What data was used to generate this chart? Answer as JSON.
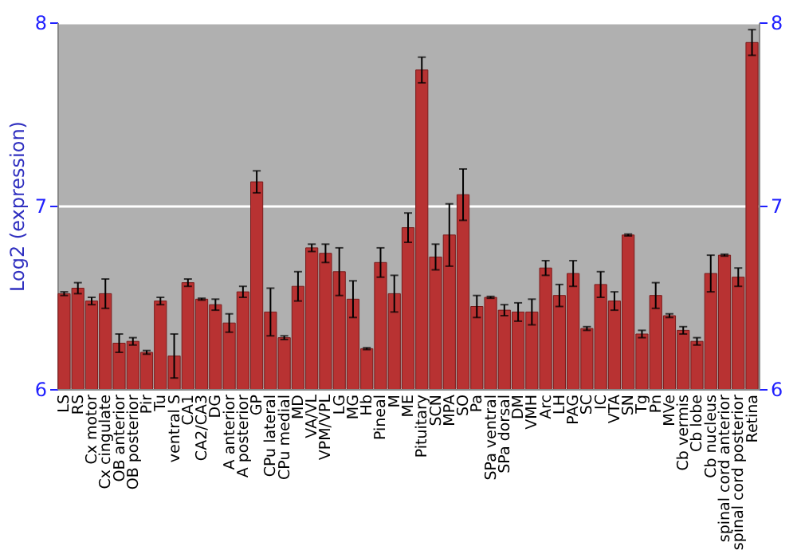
{
  "chart_data": {
    "type": "bar",
    "ylabel": "Log2 (expression)",
    "categories": [
      "LS",
      "RS",
      "Cx motor",
      "Cx cingulate",
      "OB anterior",
      "OB posterior",
      "Pir",
      "Tu",
      "ventral S",
      "CA1",
      "CA2/CA3",
      "DG",
      "A anterior",
      "A posterior",
      "GP",
      "CPu lateral",
      "CPu medial",
      "MD",
      "VA/VL",
      "VPM/VPL",
      "LG",
      "MG",
      "Hb",
      "Pineal",
      "M",
      "ME",
      "Pituitary",
      "SCN",
      "MPA",
      "SO",
      "Pa",
      "SPa ventral",
      "SPa dorsal",
      "DM",
      "VMH",
      "Arc",
      "LH",
      "PAG",
      "SC",
      "IC",
      "VTA",
      "SN",
      "Tg",
      "Pn",
      "MVe",
      "Cb vermis",
      "Cb lobe",
      "Cb nucleus",
      "spinal cord anterior",
      "spinal cord posterior",
      "Retina"
    ],
    "values": [
      6.52,
      6.55,
      6.48,
      6.52,
      6.25,
      6.26,
      6.2,
      6.48,
      6.18,
      6.58,
      6.49,
      6.46,
      6.36,
      6.53,
      7.13,
      6.42,
      6.28,
      6.56,
      6.77,
      6.74,
      6.64,
      6.49,
      6.22,
      6.69,
      6.52,
      6.88,
      7.74,
      6.72,
      6.84,
      7.06,
      6.45,
      6.5,
      6.43,
      6.42,
      6.42,
      6.66,
      6.51,
      6.63,
      6.33,
      6.57,
      6.48,
      6.84,
      6.3,
      6.51,
      6.4,
      6.32,
      6.26,
      6.63,
      6.73,
      6.61,
      7.89
    ],
    "errors": [
      0.01,
      0.03,
      0.02,
      0.08,
      0.05,
      0.02,
      0.01,
      0.02,
      0.12,
      0.02,
      0.005,
      0.03,
      0.05,
      0.03,
      0.06,
      0.13,
      0.01,
      0.08,
      0.02,
      0.05,
      0.13,
      0.1,
      0.005,
      0.08,
      0.1,
      0.08,
      0.07,
      0.07,
      0.17,
      0.14,
      0.06,
      0.005,
      0.03,
      0.05,
      0.07,
      0.04,
      0.06,
      0.07,
      0.01,
      0.07,
      0.05,
      0.005,
      0.02,
      0.07,
      0.01,
      0.02,
      0.02,
      0.1,
      0.005,
      0.05,
      0.07
    ],
    "color": "#b83232",
    "ylim": [
      6,
      8
    ],
    "yticks": [
      6,
      7,
      8
    ],
    "y2lim": [
      6,
      8
    ],
    "y2ticks": [
      6,
      7,
      8
    ],
    "grid": "y"
  }
}
